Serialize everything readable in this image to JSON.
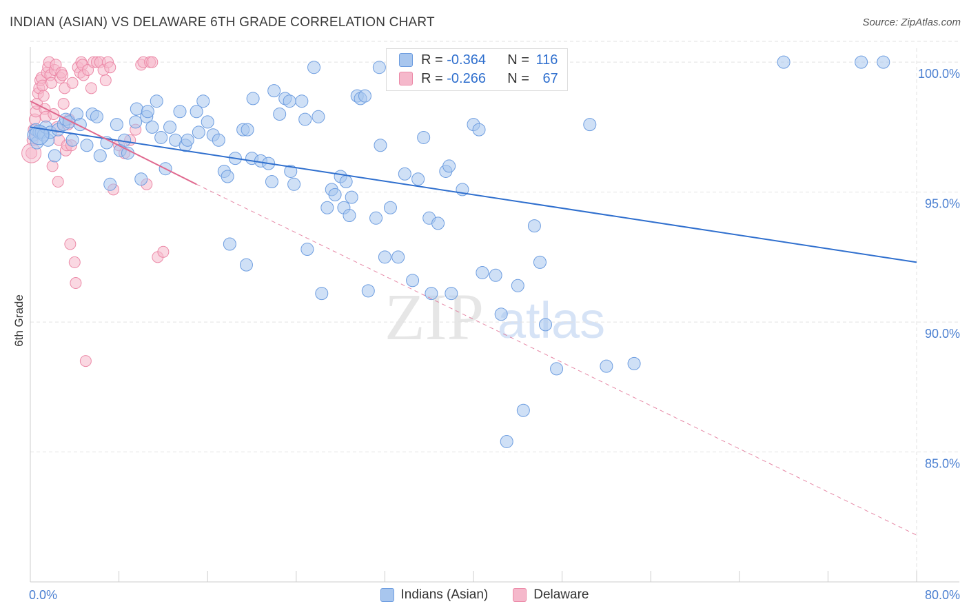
{
  "header": {
    "title": "INDIAN (ASIAN) VS DELAWARE 6TH GRADE CORRELATION CHART",
    "source": "Source: ZipAtlas.com"
  },
  "colors": {
    "blue_fill": "#a8c6ee",
    "blue_stroke": "#6d9de0",
    "blue_line": "#2f6fce",
    "pink_fill": "#f5b8cb",
    "pink_stroke": "#ec8aa8",
    "pink_line": "#e0698f",
    "axis_label": "#4a7fd1",
    "grid": "#e2e2e2"
  },
  "legend": {
    "rows": [
      {
        "r_label": "R = ",
        "r_value": "-0.364",
        "n_label": "N = ",
        "n_value": "116"
      },
      {
        "r_label": "R = ",
        "r_value": "-0.266",
        "n_label": "N = ",
        "n_value": "67"
      }
    ]
  },
  "chart_data": {
    "type": "scatter",
    "title": "INDIAN (ASIAN) VS DELAWARE 6TH GRADE CORRELATION CHART",
    "xlabel": "",
    "ylabel": "6th Grade",
    "xlim": [
      0,
      80
    ],
    "ylim": [
      80,
      100.8
    ],
    "x_tick_labels": [
      "0.0%",
      "80.0%"
    ],
    "y_ticks": [
      85,
      90,
      95,
      100
    ],
    "y_tick_labels": [
      "85.0%",
      "90.0%",
      "95.0%",
      "100.0%"
    ],
    "watermark": {
      "part1": "ZIP",
      "part2": "atlas"
    },
    "series": [
      {
        "name": "Indians (Asian)",
        "r": -0.364,
        "n": 116,
        "trend": {
          "x0": 0,
          "y0": 97.5,
          "x1": 80,
          "y1": 92.3
        },
        "points": [
          [
            0.3,
            97.2
          ],
          [
            0.5,
            97.4
          ],
          [
            0.6,
            96.9
          ],
          [
            0.8,
            97.3
          ],
          [
            1.0,
            97.3
          ],
          [
            1.2,
            97.2
          ],
          [
            1.4,
            97.5
          ],
          [
            1.6,
            97.0
          ],
          [
            1.8,
            97.3
          ],
          [
            2.2,
            96.4
          ],
          [
            2.5,
            97.4
          ],
          [
            3.0,
            97.6
          ],
          [
            3.2,
            97.8
          ],
          [
            3.5,
            97.7
          ],
          [
            3.8,
            97.0
          ],
          [
            4.2,
            98.0
          ],
          [
            4.5,
            97.6
          ],
          [
            5.1,
            96.8
          ],
          [
            5.6,
            98.0
          ],
          [
            6.0,
            97.9
          ],
          [
            6.3,
            96.4
          ],
          [
            6.9,
            96.9
          ],
          [
            7.2,
            95.3
          ],
          [
            7.8,
            97.6
          ],
          [
            8.1,
            96.6
          ],
          [
            8.5,
            97.0
          ],
          [
            8.8,
            96.5
          ],
          [
            9.5,
            97.7
          ],
          [
            9.6,
            98.2
          ],
          [
            10.0,
            95.5
          ],
          [
            10.5,
            97.9
          ],
          [
            10.6,
            98.1
          ],
          [
            11.0,
            97.5
          ],
          [
            11.4,
            98.5
          ],
          [
            11.8,
            97.1
          ],
          [
            12.2,
            95.9
          ],
          [
            12.6,
            97.5
          ],
          [
            13.1,
            97.0
          ],
          [
            13.5,
            98.1
          ],
          [
            14.0,
            96.8
          ],
          [
            14.2,
            97.0
          ],
          [
            15.0,
            98.1
          ],
          [
            15.2,
            97.3
          ],
          [
            15.6,
            98.5
          ],
          [
            16.0,
            97.7
          ],
          [
            16.5,
            97.2
          ],
          [
            17.0,
            97.0
          ],
          [
            17.5,
            95.8
          ],
          [
            17.8,
            95.6
          ],
          [
            18.0,
            93.0
          ],
          [
            18.5,
            96.3
          ],
          [
            19.2,
            97.4
          ],
          [
            19.5,
            92.2
          ],
          [
            19.6,
            97.4
          ],
          [
            20.0,
            96.3
          ],
          [
            20.1,
            98.6
          ],
          [
            20.8,
            96.2
          ],
          [
            21.5,
            96.1
          ],
          [
            21.8,
            95.4
          ],
          [
            22.0,
            98.9
          ],
          [
            22.5,
            98.0
          ],
          [
            23.0,
            98.6
          ],
          [
            23.4,
            98.5
          ],
          [
            23.5,
            95.8
          ],
          [
            23.8,
            95.3
          ],
          [
            24.5,
            98.5
          ],
          [
            24.8,
            97.8
          ],
          [
            25.0,
            92.8
          ],
          [
            25.6,
            99.8
          ],
          [
            26.0,
            97.9
          ],
          [
            26.3,
            91.1
          ],
          [
            26.8,
            94.4
          ],
          [
            27.2,
            95.1
          ],
          [
            27.5,
            94.9
          ],
          [
            28.0,
            95.6
          ],
          [
            28.3,
            94.4
          ],
          [
            28.5,
            95.4
          ],
          [
            28.8,
            94.1
          ],
          [
            29.0,
            94.8
          ],
          [
            29.5,
            98.7
          ],
          [
            29.8,
            98.6
          ],
          [
            30.2,
            98.7
          ],
          [
            30.5,
            91.2
          ],
          [
            31.2,
            94.0
          ],
          [
            31.5,
            99.8
          ],
          [
            31.6,
            96.8
          ],
          [
            32.0,
            92.5
          ],
          [
            32.5,
            94.4
          ],
          [
            33.2,
            92.5
          ],
          [
            33.8,
            95.7
          ],
          [
            34.5,
            91.6
          ],
          [
            35.0,
            95.5
          ],
          [
            35.5,
            97.1
          ],
          [
            36.0,
            94.0
          ],
          [
            36.2,
            91.1
          ],
          [
            36.8,
            93.8
          ],
          [
            37.5,
            95.8
          ],
          [
            37.8,
            96.0
          ],
          [
            38.0,
            91.1
          ],
          [
            39.0,
            95.1
          ],
          [
            40.0,
            97.6
          ],
          [
            40.5,
            97.4
          ],
          [
            40.8,
            91.9
          ],
          [
            42.0,
            91.8
          ],
          [
            42.5,
            90.3
          ],
          [
            43.0,
            85.4
          ],
          [
            44.0,
            91.4
          ],
          [
            44.5,
            86.6
          ],
          [
            45.0,
            99.9
          ],
          [
            45.5,
            93.7
          ],
          [
            46.0,
            92.3
          ],
          [
            46.5,
            89.9
          ],
          [
            47.5,
            88.2
          ],
          [
            50.5,
            97.6
          ],
          [
            52.0,
            88.3
          ],
          [
            54.5,
            88.4
          ],
          [
            68.0,
            100.0
          ],
          [
            75.0,
            100.0
          ],
          [
            77.0,
            100.0
          ]
        ]
      },
      {
        "name": "Delaware",
        "r": -0.266,
        "n": 67,
        "trend": {
          "x0": 0,
          "y0": 98.5,
          "x1": 15,
          "y1": 95.3,
          "dashed_x1": 80,
          "dashed_y1": 81.8
        },
        "points": [
          [
            0.1,
            96.5
          ],
          [
            0.2,
            97.0
          ],
          [
            0.3,
            97.4
          ],
          [
            0.4,
            97.8
          ],
          [
            0.5,
            98.1
          ],
          [
            0.6,
            98.4
          ],
          [
            0.7,
            98.8
          ],
          [
            0.8,
            99.0
          ],
          [
            0.9,
            99.3
          ],
          [
            1.0,
            99.4
          ],
          [
            1.1,
            99.1
          ],
          [
            1.2,
            98.7
          ],
          [
            1.3,
            98.2
          ],
          [
            1.4,
            97.9
          ],
          [
            1.5,
            99.6
          ],
          [
            1.6,
            99.8
          ],
          [
            1.7,
            100.0
          ],
          [
            1.8,
            99.5
          ],
          [
            1.9,
            99.2
          ],
          [
            2.0,
            96.0
          ],
          [
            2.1,
            98.0
          ],
          [
            2.2,
            99.7
          ],
          [
            2.3,
            99.9
          ],
          [
            2.4,
            97.5
          ],
          [
            2.5,
            95.4
          ],
          [
            2.6,
            97.0
          ],
          [
            2.7,
            99.4
          ],
          [
            2.8,
            99.6
          ],
          [
            2.9,
            99.5
          ],
          [
            3.0,
            98.4
          ],
          [
            3.1,
            99.0
          ],
          [
            3.2,
            96.6
          ],
          [
            3.3,
            96.8
          ],
          [
            3.4,
            97.6
          ],
          [
            3.5,
            97.8
          ],
          [
            3.6,
            93.0
          ],
          [
            3.7,
            96.8
          ],
          [
            3.8,
            99.2
          ],
          [
            4.0,
            92.3
          ],
          [
            4.1,
            91.5
          ],
          [
            4.3,
            99.8
          ],
          [
            4.5,
            99.6
          ],
          [
            4.6,
            100.0
          ],
          [
            4.7,
            99.9
          ],
          [
            4.8,
            99.5
          ],
          [
            5.0,
            88.5
          ],
          [
            5.2,
            99.7
          ],
          [
            5.5,
            99.0
          ],
          [
            5.7,
            100.0
          ],
          [
            6.0,
            100.0
          ],
          [
            6.3,
            100.0
          ],
          [
            6.6,
            99.7
          ],
          [
            6.8,
            99.3
          ],
          [
            7.0,
            100.0
          ],
          [
            7.2,
            99.8
          ],
          [
            7.5,
            95.1
          ],
          [
            8.0,
            96.8
          ],
          [
            8.5,
            96.5
          ],
          [
            9.0,
            97.0
          ],
          [
            9.5,
            97.4
          ],
          [
            10.0,
            99.9
          ],
          [
            10.2,
            100.0
          ],
          [
            10.5,
            95.3
          ],
          [
            10.8,
            100.0
          ],
          [
            11.0,
            100.0
          ],
          [
            11.5,
            92.5
          ],
          [
            12.0,
            92.7
          ]
        ]
      }
    ]
  }
}
